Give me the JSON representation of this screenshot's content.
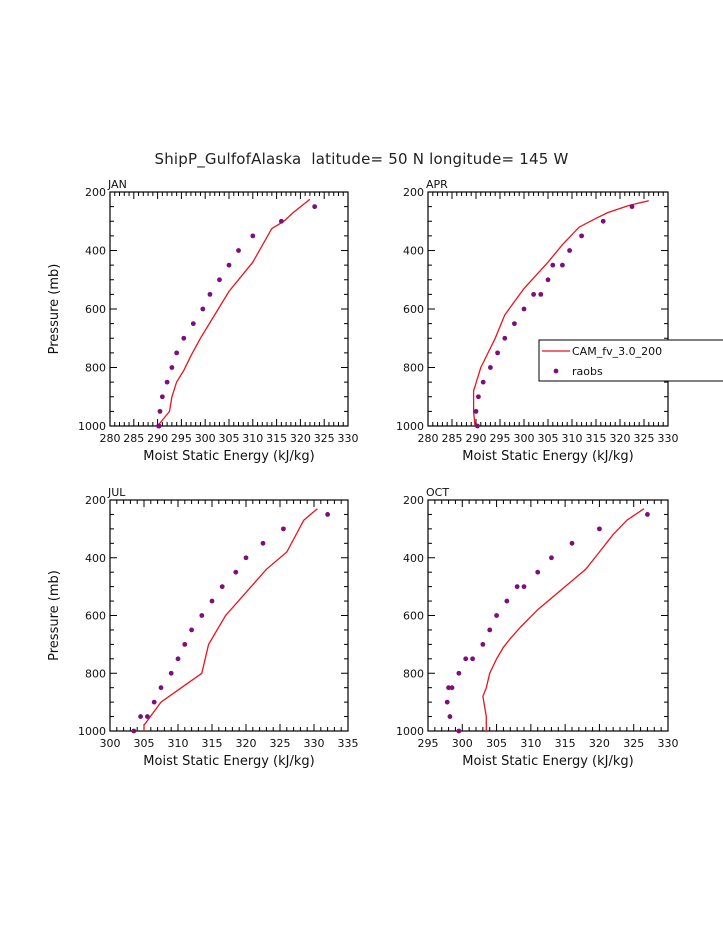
{
  "title": "ShipP_GulfofAlaska  latitude= 50 N longitude= 145 W",
  "colors": {
    "model": "#e8141c",
    "obs": "#7b0f7b",
    "axis": "#000000"
  },
  "legend": {
    "items": [
      "CAM_fv_3.0_200",
      "raobs"
    ],
    "placement": "right, over APR panel"
  },
  "chart_data": [
    {
      "panel": "JAN",
      "type": "line",
      "xlabel": "Moist Static Energy (kJ/kg)",
      "ylabel": "Pressure (mb)",
      "xlim": [
        280,
        330
      ],
      "xticks": [
        280,
        285,
        290,
        295,
        300,
        305,
        310,
        315,
        320,
        325,
        330
      ],
      "ylim": [
        200,
        1000
      ],
      "yticks": [
        200,
        400,
        600,
        800,
        1000
      ],
      "y_inverted": true,
      "series": [
        {
          "name": "CAM_fv_3.0_200",
          "kind": "line",
          "x": [
            322,
            318.5,
            316.5,
            314,
            310,
            305,
            302,
            299,
            297,
            295.5,
            294,
            293,
            292.5,
            290
          ],
          "y": [
            225,
            270,
            300,
            325,
            440,
            540,
            620,
            700,
            760,
            810,
            850,
            900,
            950,
            1000
          ]
        },
        {
          "name": "raobs",
          "kind": "markers",
          "x": [
            323,
            316,
            310,
            307,
            305,
            303,
            301,
            299.5,
            297.5,
            295.5,
            294,
            293,
            292,
            291,
            290.5,
            290.3,
            290.2
          ],
          "y": [
            250,
            300,
            350,
            400,
            450,
            500,
            550,
            600,
            650,
            700,
            750,
            800,
            850,
            900,
            950,
            1000,
            1000
          ]
        }
      ]
    },
    {
      "panel": "APR",
      "type": "line",
      "xlabel": "Moist Static Energy (kJ/kg)",
      "ylabel": "",
      "xlim": [
        280,
        330
      ],
      "xticks": [
        280,
        285,
        290,
        295,
        300,
        305,
        310,
        315,
        320,
        325,
        330
      ],
      "ylim": [
        200,
        1000
      ],
      "yticks": [
        200,
        400,
        600,
        800,
        1000
      ],
      "y_inverted": true,
      "series": [
        {
          "name": "CAM_fv_3.0_200",
          "kind": "line",
          "x": [
            326,
            322,
            317.5,
            315,
            311.5,
            308,
            305,
            300,
            296,
            294,
            292.5,
            291,
            289.5,
            289.5,
            289.8
          ],
          "y": [
            230,
            245,
            270,
            290,
            320,
            380,
            440,
            530,
            620,
            700,
            750,
            800,
            880,
            950,
            1000
          ]
        },
        {
          "name": "raobs",
          "kind": "markers",
          "x": [
            322.5,
            316.5,
            312,
            309.5,
            308,
            306,
            305,
            303.5,
            302,
            300,
            298,
            296,
            294.5,
            293,
            291.5,
            290.5,
            290,
            290.3
          ],
          "y": [
            250,
            300,
            350,
            400,
            450,
            450,
            500,
            550,
            550,
            600,
            650,
            700,
            750,
            800,
            850,
            900,
            950,
            1000
          ]
        }
      ]
    },
    {
      "panel": "JUL",
      "type": "line",
      "xlabel": "Moist Static Energy (kJ/kg)",
      "ylabel": "Pressure (mb)",
      "xlim": [
        300,
        335
      ],
      "xticks": [
        300,
        305,
        310,
        315,
        320,
        325,
        330,
        335
      ],
      "ylim": [
        200,
        1000
      ],
      "yticks": [
        200,
        400,
        600,
        800,
        1000
      ],
      "y_inverted": true,
      "series": [
        {
          "name": "CAM_fv_3.0_200",
          "kind": "line",
          "x": [
            330.5,
            329.5,
            328.5,
            326,
            323,
            320,
            317,
            314.5,
            313.5,
            310.5,
            307.5,
            305,
            305
          ],
          "y": [
            230,
            250,
            270,
            380,
            440,
            520,
            600,
            700,
            800,
            850,
            900,
            980,
            1000
          ]
        },
        {
          "name": "raobs",
          "kind": "markers",
          "x": [
            332,
            325.5,
            322.5,
            320,
            318.5,
            316.5,
            315,
            313.5,
            312,
            311,
            310,
            309,
            307.5,
            306.5,
            305.5,
            304.5,
            303.5
          ],
          "y": [
            250,
            300,
            350,
            400,
            450,
            500,
            550,
            600,
            650,
            700,
            750,
            800,
            850,
            900,
            950,
            950,
            1000
          ]
        }
      ]
    },
    {
      "panel": "OCT",
      "type": "line",
      "xlabel": "Moist Static Energy (kJ/kg)",
      "ylabel": "",
      "xlim": [
        295,
        330
      ],
      "xticks": [
        295,
        300,
        305,
        310,
        315,
        320,
        325,
        330
      ],
      "ylim": [
        200,
        1000
      ],
      "yticks": [
        200,
        400,
        600,
        800,
        1000
      ],
      "y_inverted": true,
      "series": [
        {
          "name": "CAM_fv_3.0_200",
          "kind": "line",
          "x": [
            326.5,
            324,
            322,
            320,
            318,
            315,
            311,
            308.5,
            307,
            306,
            305,
            304,
            303.5,
            303,
            303.5,
            303.5
          ],
          "y": [
            230,
            270,
            320,
            380,
            440,
            500,
            580,
            640,
            680,
            710,
            750,
            800,
            850,
            880,
            950,
            1000
          ]
        },
        {
          "name": "raobs",
          "kind": "markers",
          "x": [
            327,
            320,
            316,
            313,
            311,
            309,
            308,
            306.5,
            305,
            304,
            303,
            301.5,
            300.5,
            299.5,
            298.5,
            298,
            297.8,
            298.2,
            299.5
          ],
          "y": [
            250,
            300,
            350,
            400,
            450,
            500,
            500,
            550,
            600,
            650,
            700,
            750,
            750,
            800,
            850,
            850,
            900,
            950,
            1000
          ]
        }
      ]
    }
  ]
}
